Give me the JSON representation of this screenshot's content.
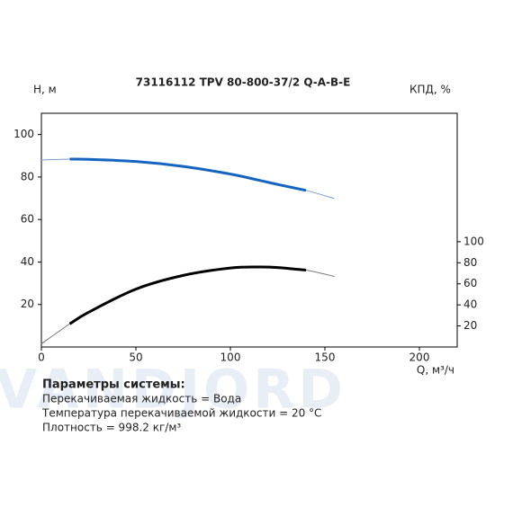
{
  "chart_data": {
    "type": "line",
    "title": "73116112 TPV 80-800-37/2 Q-A-B-E",
    "y_label": "H, м",
    "y2_label": "КПД, %",
    "x_label": "Q, м³/ч",
    "watermark": "VANDJORD",
    "x": [
      0,
      15,
      25,
      50,
      75,
      100,
      115,
      125,
      140,
      155
    ],
    "series": [
      {
        "color": "#7a9cc6",
        "width": 1,
        "values": [
          88,
          88.4,
          88.3,
          87.3,
          85,
          81.4,
          78.5,
          76.5,
          73.7,
          69.9
        ]
      },
      {
        "color": "#1565c0",
        "width": 3,
        "values": [
          null,
          88.4,
          88.3,
          87.3,
          85,
          81.4,
          78.5,
          76.5,
          73.7,
          null
        ]
      },
      {
        "color": "#777777",
        "width": 1,
        "axis": "y2",
        "values": [
          3,
          22,
          33,
          55,
          68,
          75,
          76,
          75.5,
          73,
          67
        ]
      },
      {
        "color": "#000000",
        "width": 3,
        "axis": "y2",
        "values": [
          null,
          22,
          33,
          55,
          68,
          75,
          76,
          75.5,
          73,
          null
        ]
      }
    ],
    "xlim": [
      0,
      220
    ],
    "xticks": [
      0,
      50,
      100,
      150,
      200
    ],
    "ylim": [
      0,
      110
    ],
    "yticks": [
      20,
      40,
      60,
      80,
      100
    ],
    "y2lim": [
      0,
      222
    ],
    "y2ticks": [
      20,
      40,
      60,
      80,
      100
    ]
  },
  "notes": {
    "heading": "Параметры системы:",
    "lines": [
      "Перекачиваемая жидкость = Вода",
      "Температура перекачиваемой жидкости = 20 °C",
      "Плотность = 998.2 кг/м³"
    ]
  }
}
